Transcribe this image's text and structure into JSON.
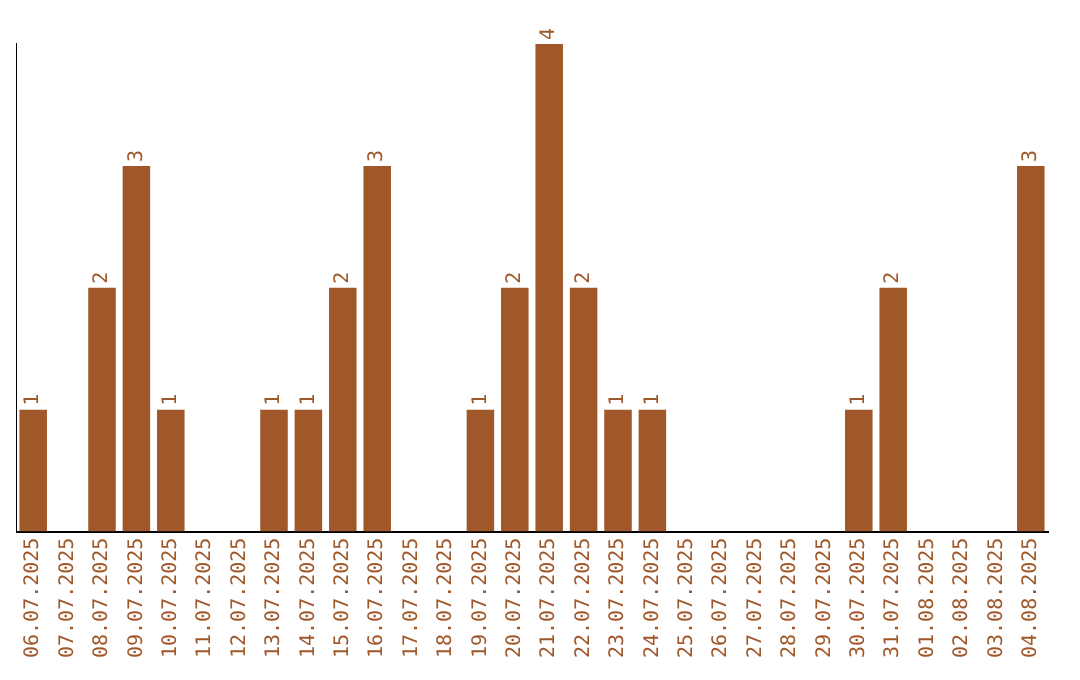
{
  "chart_data": {
    "type": "bar",
    "categories": [
      "06.07.2025",
      "07.07.2025",
      "08.07.2025",
      "09.07.2025",
      "10.07.2025",
      "11.07.2025",
      "12.07.2025",
      "13.07.2025",
      "14.07.2025",
      "15.07.2025",
      "16.07.2025",
      "17.07.2025",
      "18.07.2025",
      "19.07.2025",
      "20.07.2025",
      "21.07.2025",
      "22.07.2025",
      "23.07.2025",
      "24.07.2025",
      "25.07.2025",
      "26.07.2025",
      "27.07.2025",
      "28.07.2025",
      "29.07.2025",
      "30.07.2025",
      "31.07.2025",
      "01.08.2025",
      "02.08.2025",
      "03.08.2025",
      "04.08.2025"
    ],
    "values": [
      1,
      0,
      2,
      3,
      1,
      0,
      0,
      1,
      1,
      2,
      3,
      0,
      0,
      1,
      2,
      4,
      2,
      1,
      1,
      0,
      0,
      0,
      0,
      0,
      1,
      2,
      0,
      0,
      0,
      3
    ],
    "value_labels": [
      "1",
      null,
      "2",
      "3",
      "1",
      null,
      null,
      "1",
      "1",
      "2",
      "3",
      null,
      null,
      "1",
      "2",
      "4",
      "2",
      "1",
      "1",
      null,
      null,
      null,
      null,
      null,
      "1",
      "2",
      null,
      null,
      null,
      "3"
    ],
    "color": "#a0582a",
    "grid": false,
    "legend": false,
    "tick_labels": "x"
  }
}
